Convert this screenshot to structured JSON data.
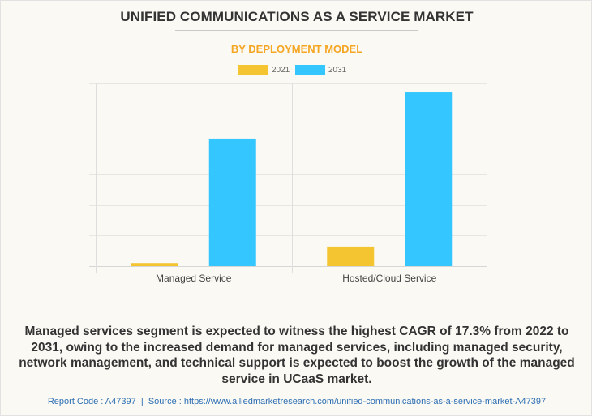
{
  "chart_data": {
    "type": "bar",
    "title": "UNIFIED COMMUNICATIONS AS A SERVICE MARKET",
    "subtitle": "BY DEPLOYMENT MODEL",
    "xlabel": "",
    "ylabel": "",
    "categories": [
      "Managed Service",
      "Hosted/Cloud Service"
    ],
    "series": [
      {
        "name": "2021",
        "color": "#f5c431",
        "values": [
          0.1,
          0.64
        ]
      },
      {
        "name": "2031",
        "color": "#33c6ff",
        "values": [
          4.17,
          5.68
        ]
      }
    ],
    "ylim": [
      0,
      6
    ],
    "y_gridlines": 6,
    "y_tick_labels_shown": false,
    "grid": true,
    "legend": "top-center"
  },
  "note": "Managed services segment is expected to witness the highest CAGR of 17.3% from 2022 to 2031, owing to the increased demand for managed services, including managed security, network management, and technical support is expected to boost the growth of the managed service in UCaaS market.",
  "footer": {
    "report_code": "Report Code : A47397",
    "separator": "|",
    "source": "Source : https://www.alliedmarketresearch.com/unified-communications-as-a-service-market-A47397"
  }
}
